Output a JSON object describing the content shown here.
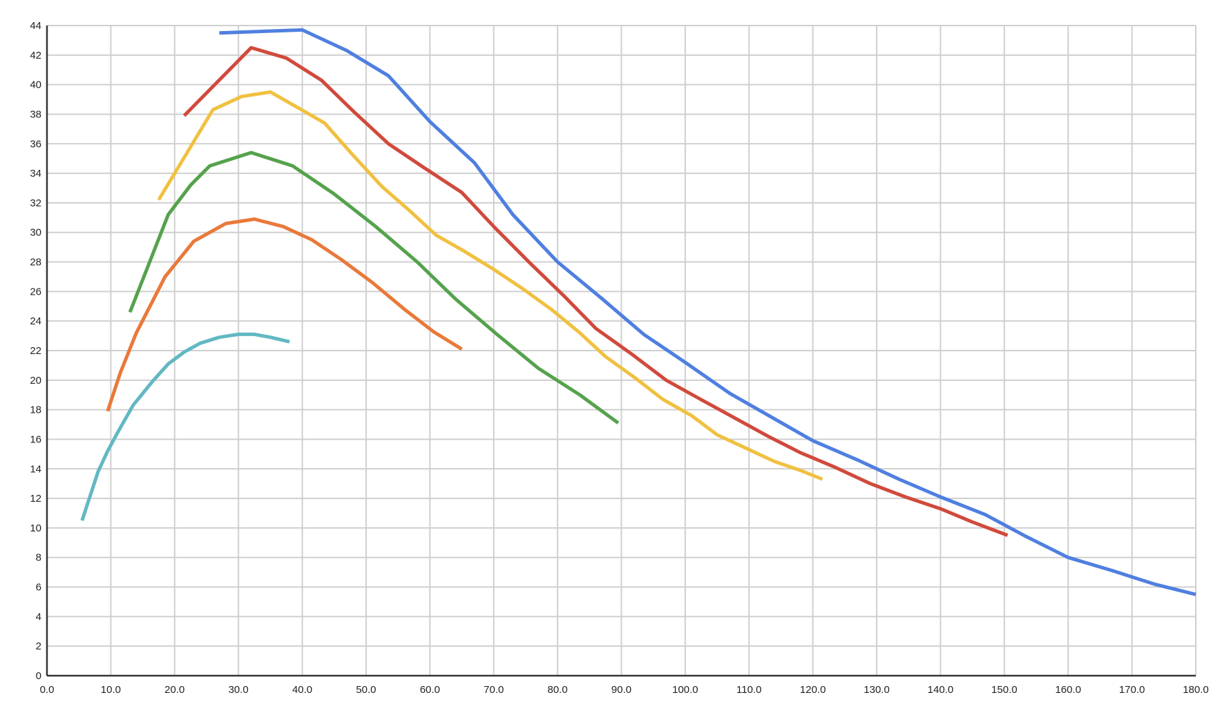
{
  "chart_data": {
    "type": "line",
    "title": "",
    "xlabel": "",
    "ylabel": "",
    "xlim": [
      0,
      180
    ],
    "ylim": [
      0,
      44
    ],
    "grid": true,
    "x_ticks": [
      "0.0",
      "10.0",
      "20.0",
      "30.0",
      "40.0",
      "50.0",
      "60.0",
      "70.0",
      "80.0",
      "90.0",
      "100.0",
      "110.0",
      "120.0",
      "130.0",
      "140.0",
      "150.0",
      "160.0",
      "170.0",
      "180.0"
    ],
    "y_ticks": [
      "0",
      "2",
      "4",
      "6",
      "8",
      "10",
      "12",
      "14",
      "16",
      "18",
      "20",
      "22",
      "24",
      "26",
      "28",
      "30",
      "32",
      "34",
      "36",
      "38",
      "40",
      "42",
      "44"
    ],
    "series": [
      {
        "color": "#4f7fe0",
        "points": [
          [
            27,
            43.5
          ],
          [
            40,
            43.7
          ],
          [
            47,
            42.3
          ],
          [
            53.5,
            40.6
          ],
          [
            60,
            37.5
          ],
          [
            67,
            34.7
          ],
          [
            73,
            31.2
          ],
          [
            80,
            28
          ],
          [
            87,
            25.5
          ],
          [
            93.5,
            23.1
          ],
          [
            100,
            21.2
          ],
          [
            107,
            19.1
          ],
          [
            113.5,
            17.5
          ],
          [
            120,
            15.9
          ],
          [
            127,
            14.6
          ],
          [
            133.5,
            13.3
          ],
          [
            140,
            12.1
          ],
          [
            147,
            10.9
          ],
          [
            153.5,
            9.4
          ],
          [
            160,
            8
          ],
          [
            167,
            7.1
          ],
          [
            173.5,
            6.2
          ],
          [
            180,
            5.5
          ]
        ]
      },
      {
        "color": "#d04a3c",
        "points": [
          [
            21.5,
            37.9
          ],
          [
            32,
            42.5
          ],
          [
            37.5,
            41.8
          ],
          [
            43,
            40.3
          ],
          [
            48,
            38.2
          ],
          [
            53.5,
            36
          ],
          [
            59,
            34.4
          ],
          [
            65,
            32.7
          ],
          [
            70,
            30.4
          ],
          [
            75.5,
            28
          ],
          [
            81,
            25.7
          ],
          [
            86,
            23.5
          ],
          [
            91.5,
            21.8
          ],
          [
            97,
            20
          ],
          [
            102,
            18.8
          ],
          [
            107.5,
            17.5
          ],
          [
            113,
            16.2
          ],
          [
            118,
            15.1
          ],
          [
            123.5,
            14.1
          ],
          [
            129,
            13
          ],
          [
            134.5,
            12.1
          ],
          [
            140,
            11.3
          ],
          [
            145,
            10.4
          ],
          [
            150.5,
            9.5
          ]
        ]
      },
      {
        "color": "#f0c040",
        "points": [
          [
            17.5,
            32.2
          ],
          [
            26,
            38.3
          ],
          [
            30.5,
            39.2
          ],
          [
            35,
            39.5
          ],
          [
            39.5,
            38.4
          ],
          [
            43.5,
            37.4
          ],
          [
            48,
            35.2
          ],
          [
            52.5,
            33.1
          ],
          [
            57,
            31.4
          ],
          [
            61,
            29.8
          ],
          [
            65.5,
            28.7
          ],
          [
            70,
            27.5
          ],
          [
            74.5,
            26.2
          ],
          [
            79,
            24.8
          ],
          [
            83.5,
            23.2
          ],
          [
            87.5,
            21.6
          ],
          [
            92,
            20.2
          ],
          [
            96.5,
            18.7
          ],
          [
            101,
            17.6
          ],
          [
            105,
            16.3
          ],
          [
            109.5,
            15.4
          ],
          [
            114,
            14.5
          ],
          [
            118,
            13.9
          ],
          [
            121.5,
            13.3
          ]
        ]
      },
      {
        "color": "#55a24d",
        "points": [
          [
            13,
            24.6
          ],
          [
            19,
            31.2
          ],
          [
            22.5,
            33.2
          ],
          [
            25.5,
            34.5
          ],
          [
            32,
            35.4
          ],
          [
            38.5,
            34.5
          ],
          [
            45,
            32.6
          ],
          [
            51.5,
            30.4
          ],
          [
            58,
            28
          ],
          [
            64,
            25.5
          ],
          [
            70.5,
            23.1
          ],
          [
            77,
            20.8
          ],
          [
            83.5,
            19
          ],
          [
            89.5,
            17.1
          ]
        ]
      },
      {
        "color": "#e9793a",
        "points": [
          [
            9.5,
            17.9
          ],
          [
            11.5,
            20.5
          ],
          [
            14,
            23.2
          ],
          [
            16.5,
            25.3
          ],
          [
            18.5,
            27
          ],
          [
            23,
            29.4
          ],
          [
            28,
            30.6
          ],
          [
            32.5,
            30.9
          ],
          [
            37,
            30.4
          ],
          [
            41.5,
            29.5
          ],
          [
            46,
            28.2
          ],
          [
            51,
            26.6
          ],
          [
            56,
            24.8
          ],
          [
            60.5,
            23.3
          ],
          [
            65,
            22.1
          ]
        ]
      },
      {
        "color": "#62b8c2",
        "points": [
          [
            5.5,
            10.5
          ],
          [
            8,
            13.8
          ],
          [
            9.5,
            15.2
          ],
          [
            11,
            16.4
          ],
          [
            13.5,
            18.3
          ],
          [
            16.5,
            19.9
          ],
          [
            19,
            21.1
          ],
          [
            21.5,
            21.9
          ],
          [
            24,
            22.5
          ],
          [
            27,
            22.9
          ],
          [
            30,
            23.1
          ],
          [
            32.5,
            23.1
          ],
          [
            35,
            22.9
          ],
          [
            38,
            22.6
          ]
        ]
      }
    ]
  }
}
